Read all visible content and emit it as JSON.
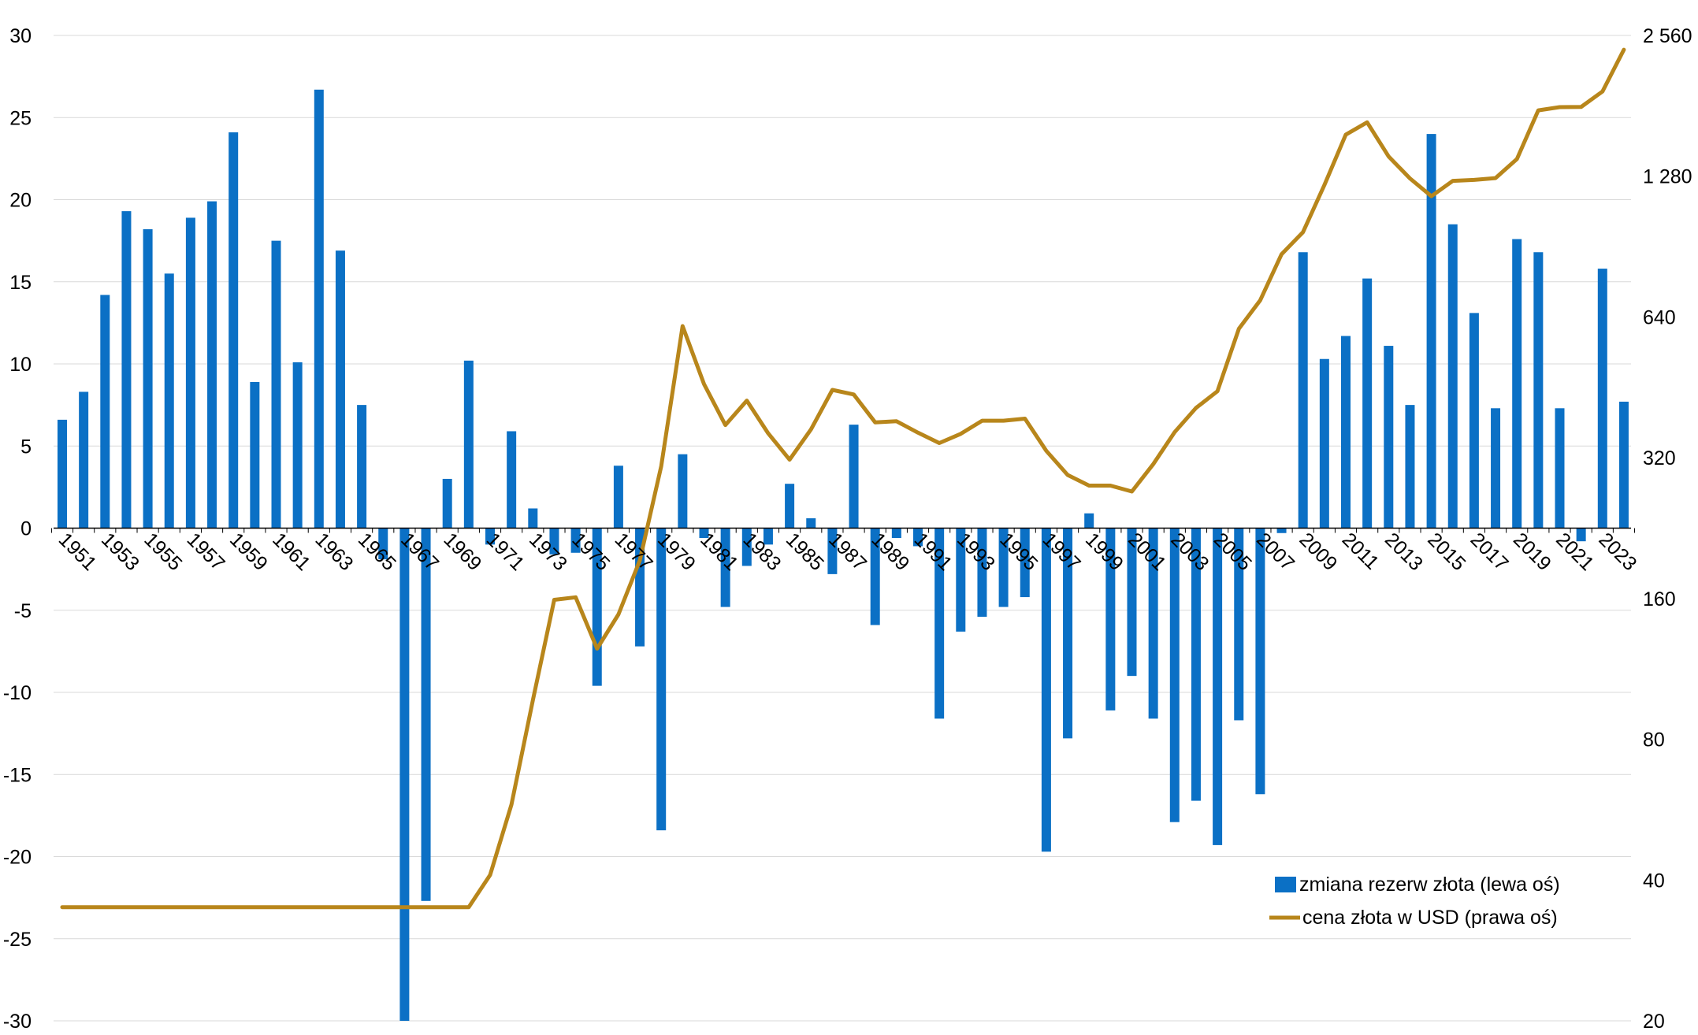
{
  "chart_data": {
    "type": "bar",
    "title": "",
    "xlabel": "",
    "ylabel": "",
    "ylim": [
      -30,
      30
    ],
    "y_ticks": [
      "30",
      "25",
      "20",
      "15",
      "10",
      "5",
      "0",
      "-5",
      "-10",
      "-15",
      "-20",
      "-25",
      "-30"
    ],
    "y_tick_values": [
      30,
      25,
      20,
      15,
      10,
      5,
      0,
      -5,
      -10,
      -15,
      -20,
      -25,
      -30
    ],
    "y2_scale": "log2",
    "y2lim": [
      20,
      2560
    ],
    "y2_ticks": [
      "2 560",
      "1 280",
      "640",
      "320",
      "160",
      "80",
      "40",
      "20"
    ],
    "y2_tick_values": [
      2560,
      1280,
      640,
      320,
      160,
      80,
      40,
      20
    ],
    "grid": true,
    "legend_position": "bottom-right",
    "x": [
      1951,
      1952,
      1953,
      1954,
      1955,
      1956,
      1957,
      1958,
      1959,
      1960,
      1961,
      1962,
      1963,
      1964,
      1965,
      1966,
      1967,
      1968,
      1969,
      1970,
      1971,
      1972,
      1973,
      1974,
      1975,
      1976,
      1977,
      1978,
      1979,
      1980,
      1981,
      1982,
      1983,
      1984,
      1985,
      1986,
      1987,
      1988,
      1989,
      1990,
      1991,
      1992,
      1993,
      1994,
      1995,
      1996,
      1997,
      1998,
      1999,
      2000,
      2001,
      2002,
      2003,
      2004,
      2005,
      2006,
      2007,
      2008,
      2009,
      2010,
      2011,
      2012,
      2013,
      2014,
      2015,
      2016,
      2017,
      2018,
      2019,
      2020,
      2021,
      2022,
      2023,
      2024
    ],
    "x_tick_labels": [
      "1951",
      "1953",
      "1955",
      "1957",
      "1959",
      "1961",
      "1963",
      "1965",
      "1967",
      "1969",
      "1971",
      "1973",
      "1975",
      "1977",
      "1979",
      "1981",
      "1983",
      "1985",
      "1987",
      "1989",
      "1991",
      "1993",
      "1995",
      "1997",
      "1999",
      "2001",
      "2003",
      "2005",
      "2007",
      "2009",
      "2011",
      "2013",
      "2015",
      "2017",
      "2019",
      "2021",
      "2023"
    ],
    "series": [
      {
        "name": "zmiana rezerw złota (lewa oś)",
        "type": "bar",
        "axis": "left",
        "color": "#0B70C5",
        "values": [
          6.6,
          8.3,
          14.2,
          19.3,
          18.2,
          15.5,
          18.9,
          19.9,
          24.1,
          8.9,
          17.5,
          10.1,
          26.7,
          16.9,
          7.5,
          -1.9,
          -30.0,
          -22.7,
          3.0,
          10.2,
          -1.0,
          5.9,
          1.2,
          -1.6,
          -1.5,
          -9.6,
          3.8,
          -7.2,
          -18.4,
          4.5,
          -0.6,
          -4.8,
          -2.3,
          -1.0,
          2.7,
          0.6,
          -2.8,
          6.3,
          -5.9,
          -0.6,
          -1.1,
          -11.6,
          -6.3,
          -5.4,
          -4.8,
          -4.2,
          -19.7,
          -12.8,
          0.9,
          -11.1,
          -9.0,
          -11.6,
          -17.9,
          -16.6,
          -19.3,
          -11.7,
          -16.2,
          -0.3,
          16.8,
          10.3,
          11.7,
          15.2,
          11.1,
          7.5,
          24.0,
          18.5,
          13.1,
          7.3,
          17.6,
          16.8,
          7.3,
          -0.8,
          15.8,
          7.7
        ]
      },
      {
        "name": "cena złota w USD (prawa oś)",
        "type": "line",
        "axis": "right",
        "color": "#B8861B",
        "values": [
          35,
          35,
          35,
          35,
          35,
          35,
          35,
          35,
          35,
          35,
          35,
          35,
          35,
          35,
          35,
          35,
          35,
          35,
          35,
          35,
          41,
          58,
          97,
          159,
          161,
          125,
          148,
          193,
          307,
          612,
          460,
          376,
          424,
          361,
          317,
          368,
          447,
          437,
          381,
          383,
          362,
          344,
          360,
          384,
          384,
          388,
          331,
          294,
          279,
          279,
          271,
          310,
          363,
          409,
          444,
          604,
          695,
          872,
          972,
          1225,
          1571,
          1669,
          1411,
          1266,
          1160,
          1251,
          1257,
          1268,
          1393,
          1770,
          1799,
          1800,
          1943,
          2386
        ]
      }
    ]
  }
}
